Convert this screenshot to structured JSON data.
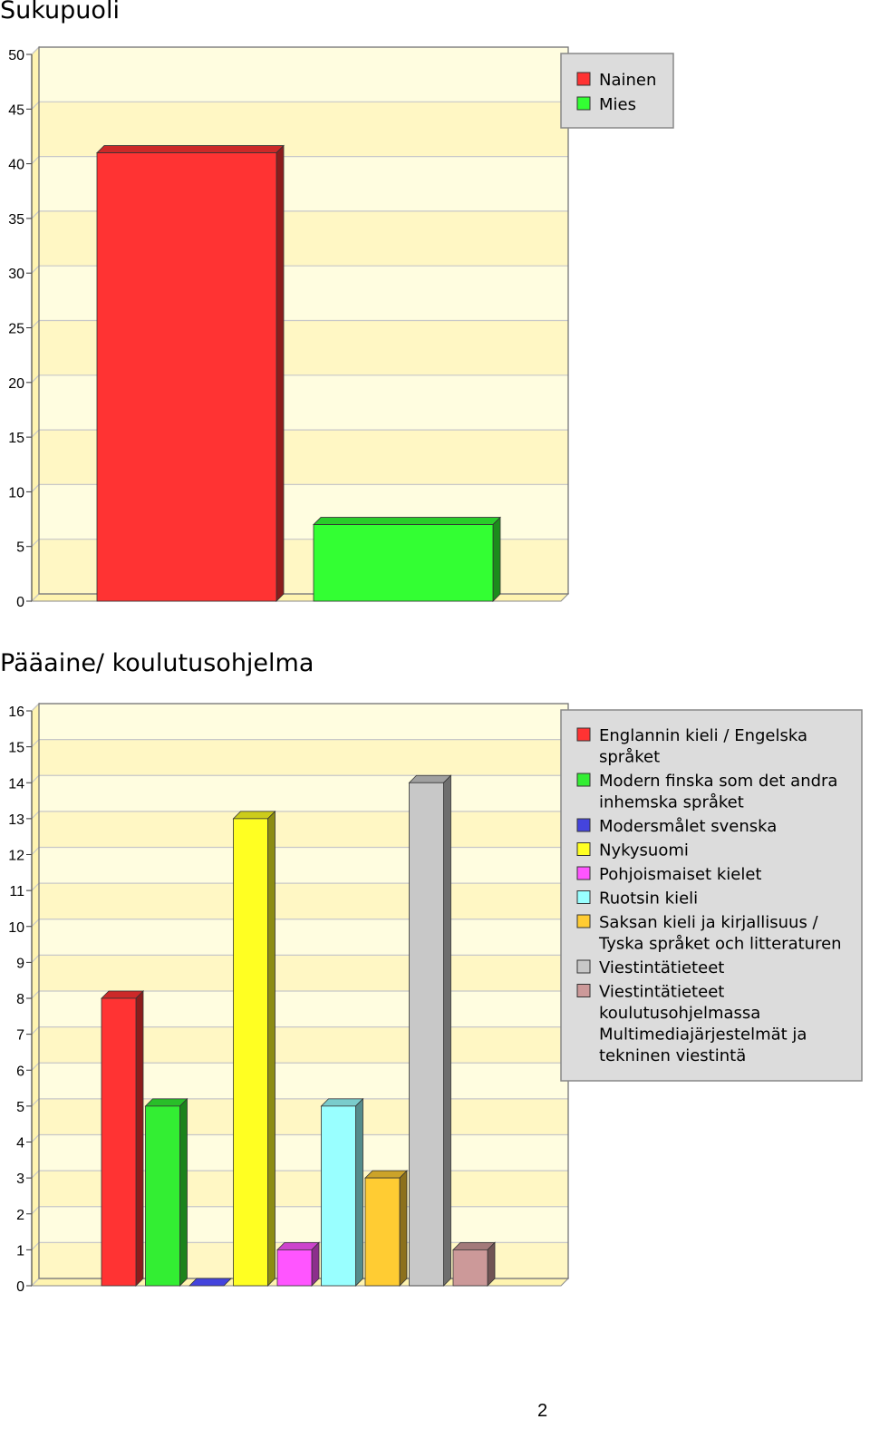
{
  "page": {
    "page_number": "2"
  },
  "chart_data": [
    {
      "type": "bar",
      "title": "Sukupuoli",
      "xlabel": "",
      "ylabel": "",
      "ylim": [
        0,
        50
      ],
      "y_ticks": [
        "0",
        "5",
        "10",
        "15",
        "20",
        "25",
        "30",
        "35",
        "40",
        "45",
        "50"
      ],
      "grid": true,
      "legend_position": "top-right",
      "categories": [
        "Nainen",
        "Mies"
      ],
      "values": [
        41,
        7
      ],
      "colors": [
        "#ff3333",
        "#33ff33"
      ]
    },
    {
      "type": "bar",
      "title": "Pääaine/ koulutusohjelma",
      "xlabel": "",
      "ylabel": "",
      "ylim": [
        0,
        16
      ],
      "y_ticks": [
        "0",
        "1",
        "2",
        "3",
        "4",
        "5",
        "6",
        "7",
        "8",
        "9",
        "10",
        "11",
        "12",
        "13",
        "14",
        "15",
        "16"
      ],
      "grid": true,
      "legend_position": "right",
      "categories": [
        "Englannin kieli / Engelska språket",
        "Modern finska som det andra inhemska språket",
        "Modersmålet svenska",
        "Nykysuomi",
        "Pohjoismaiset kielet",
        "Ruotsin kieli",
        "Saksan kieli ja kirjallisuus / Tyska språket och litteraturen",
        "Viestintätieteet",
        "Viestintätieteet koulutusohjelmassa Multimediajärjestelmät ja tekninen viestintä"
      ],
      "legend_lines": [
        [
          "Englannin kieli / Engelska",
          "språket"
        ],
        [
          "Modern finska som det andra",
          "inhemska språket"
        ],
        [
          "Modersmålet svenska"
        ],
        [
          "Nykysuomi"
        ],
        [
          "Pohjoismaiset kielet"
        ],
        [
          "Ruotsin kieli"
        ],
        [
          "Saksan kieli ja kirjallisuus /",
          "Tyska språket och litteraturen"
        ],
        [
          "Viestintätieteet"
        ],
        [
          "Viestintätieteet",
          "koulutusohjelmassa",
          "Multimediajärjestelmät ja",
          "tekninen viestintä"
        ]
      ],
      "values": [
        8,
        5,
        0,
        13,
        1,
        5,
        3,
        14,
        1
      ],
      "colors": [
        "#ff3333",
        "#33ee33",
        "#4444dd",
        "#ffff22",
        "#ff55ff",
        "#99ffff",
        "#ffcc33",
        "#c8c8c8",
        "#cc9999"
      ]
    }
  ]
}
